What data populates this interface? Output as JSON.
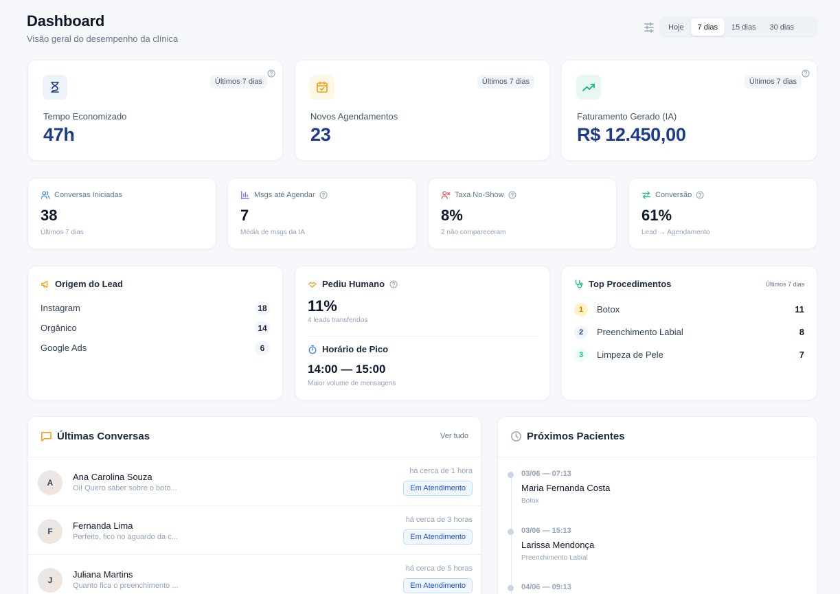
{
  "header": {
    "title": "Dashboard",
    "subtitle": "Visão geral do desempenho da clínica"
  },
  "range": {
    "options": [
      "Hoje",
      "7 dias",
      "15 dias",
      "30 dias"
    ],
    "selected": "7 dias"
  },
  "kpis": [
    {
      "label": "Tempo Economizado",
      "value": "47h",
      "badge": "Últimos 7 dias",
      "icon": "hourglass-icon"
    },
    {
      "label": "Novos Agendamentos",
      "value": "23",
      "badge": "Últimos 7 dias",
      "icon": "calendar-check-icon"
    },
    {
      "label": "Faturamento Gerado (IA)",
      "value": "R$ 12.450,00",
      "badge": "Últimos 7 dias",
      "icon": "trending-up-icon"
    }
  ],
  "stats": [
    {
      "label": "Conversas Iniciadas",
      "value": "38",
      "sub": "Últimos 7 dias",
      "icon": "users-icon"
    },
    {
      "label": "Msgs até Agendar",
      "value": "7",
      "sub": "Média de msgs da IA",
      "icon": "bar-chart-icon"
    },
    {
      "label": "Taxa No-Show",
      "value": "8%",
      "sub": "2 não compareceram",
      "icon": "user-x-icon"
    },
    {
      "label": "Conversão",
      "value": "61%",
      "sub": "Lead → Agendamento",
      "icon": "arrows-exchange-icon"
    }
  ],
  "lead_origin": {
    "title": "Origem do Lead",
    "items": [
      {
        "label": "Instagram",
        "count": "18"
      },
      {
        "label": "Orgânico",
        "count": "14"
      },
      {
        "label": "Google Ads",
        "count": "6"
      }
    ]
  },
  "human": {
    "title": "Pediu Humano",
    "value": "11%",
    "sub": "4 leads transferidos",
    "peak_title": "Horário de Pico",
    "peak_value": "14:00 — 15:00",
    "peak_sub": "Maior volume de mensagens"
  },
  "top_procedures": {
    "title": "Top Procedimentos",
    "badge": "Últimos 7 dias",
    "items": [
      {
        "rank": "1",
        "label": "Botox",
        "count": "11"
      },
      {
        "rank": "2",
        "label": "Preenchimento Labial",
        "count": "8"
      },
      {
        "rank": "3",
        "label": "Limpeza de Pele",
        "count": "7"
      }
    ]
  },
  "conversations": {
    "title": "Últimas Conversas",
    "view_all": "Ver tudo",
    "items": [
      {
        "initial": "A",
        "name": "Ana Carolina Souza",
        "message": "Oi! Quero saber sobre o boto...",
        "time": "há cerca de 1 hora",
        "status": "Em Atendimento"
      },
      {
        "initial": "F",
        "name": "Fernanda Lima",
        "message": "Perfeito, fico no aguardo da c...",
        "time": "há cerca de 3 horas",
        "status": "Em Atendimento"
      },
      {
        "initial": "J",
        "name": "Juliana Martins",
        "message": "Quanto fica o preenchimento ...",
        "time": "há cerca de 5 horas",
        "status": "Em Atendimento"
      }
    ]
  },
  "patients": {
    "title": "Próximos Pacientes",
    "items": [
      {
        "datetime": "03/06 — 07:13",
        "name": "Maria Fernanda Costa",
        "procedure": "Botox"
      },
      {
        "datetime": "03/06 — 15:13",
        "name": "Larissa Mendonça",
        "procedure": "Preenchimento Labial"
      },
      {
        "datetime": "04/06 — 09:13",
        "name": "",
        "procedure": ""
      }
    ]
  },
  "colors": {
    "accent_blue": "#1e3a8a",
    "accent_orange": "#f59e0b",
    "accent_green": "#10b981",
    "status_blue": "#1d4ed8"
  }
}
